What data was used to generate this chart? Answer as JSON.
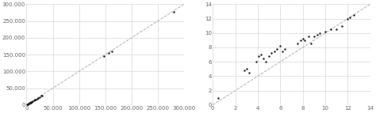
{
  "left": {
    "scatter_x": [
      1500,
      2000,
      3000,
      4000,
      5000,
      6000,
      7000,
      8000,
      9000,
      10000,
      12000,
      14000,
      16000,
      18000,
      20000,
      22000,
      25000,
      28000,
      30000,
      148000,
      157000,
      163000,
      280000
    ],
    "scatter_y": [
      1000,
      1500,
      2500,
      3500,
      4500,
      5500,
      6500,
      7500,
      8500,
      9500,
      11000,
      13000,
      15000,
      17000,
      19000,
      21000,
      24000,
      27000,
      29000,
      145000,
      155000,
      160000,
      278000
    ],
    "line_x": [
      0,
      300000
    ],
    "line_y": [
      0,
      300000
    ],
    "xlim": [
      0,
      300000
    ],
    "ylim": [
      0,
      300000
    ],
    "xticks": [
      0,
      50000,
      100000,
      150000,
      200000,
      250000,
      300000
    ],
    "yticks": [
      0,
      50000,
      100000,
      150000,
      200000,
      250000,
      300000
    ],
    "xtick_labels": [
      "0",
      "50.000",
      "100.000",
      "150.000",
      "200.000",
      "250.000",
      "300.000"
    ],
    "ytick_labels": [
      "0",
      "50.000",
      "100.000",
      "150.000",
      "200.000",
      "250.000",
      "300.000"
    ]
  },
  "right": {
    "scatter_x": [
      0.5,
      2.8,
      3.0,
      3.2,
      3.9,
      4.1,
      4.3,
      4.5,
      4.7,
      5.0,
      5.2,
      5.5,
      5.7,
      6.0,
      6.2,
      6.4,
      7.5,
      7.8,
      8.0,
      8.2,
      8.5,
      8.7,
      9.0,
      9.3,
      9.5,
      10.0,
      10.5,
      11.0,
      11.5,
      12.0,
      12.2,
      12.5
    ],
    "scatter_y": [
      1.0,
      4.8,
      5.0,
      4.5,
      6.0,
      6.8,
      7.0,
      6.5,
      6.0,
      6.8,
      7.2,
      7.5,
      7.8,
      8.2,
      7.5,
      7.8,
      8.5,
      9.0,
      9.2,
      9.0,
      9.5,
      8.5,
      9.5,
      9.8,
      10.0,
      10.2,
      10.5,
      10.5,
      11.0,
      12.0,
      12.2,
      12.5
    ],
    "line_x": [
      0,
      14
    ],
    "line_y": [
      0,
      14
    ],
    "xlim": [
      0,
      14
    ],
    "ylim": [
      0,
      14
    ],
    "xticks": [
      0,
      2,
      4,
      6,
      8,
      10,
      12,
      14
    ],
    "yticks": [
      0,
      2,
      4,
      6,
      8,
      10,
      12,
      14
    ],
    "xtick_labels": [
      "0",
      "2",
      "4",
      "6",
      "8",
      "10",
      "12",
      "14"
    ],
    "ytick_labels": [
      "0",
      "2",
      "4",
      "6",
      "8",
      "10",
      "12",
      "14"
    ]
  },
  "dot_color": "#1a1a1a",
  "dot_size": 3,
  "line_color": "#b0b0b0",
  "line_style": "--",
  "line_width": 0.7,
  "grid_color": "#d8d8d8",
  "grid_linewidth": 0.5,
  "bg_color": "#ffffff",
  "tick_fontsize": 5,
  "tick_color": "#666666",
  "spine_color": "#cccccc"
}
